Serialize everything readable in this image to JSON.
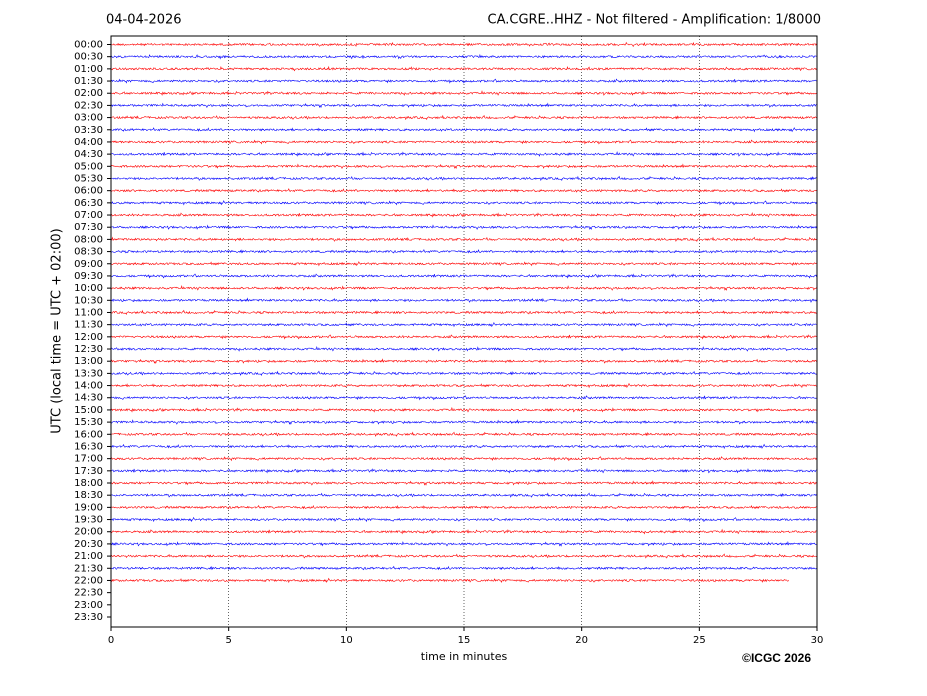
{
  "chart_data": {
    "type": "helicorder",
    "date": "04-04-2026",
    "title": "CA.CGRE..HHZ - Not filtered - Amplification: 1/8000",
    "ylabel": "UTC (local time = UTC + 02:00)",
    "xlabel": "time in minutes",
    "credit": "©ICGC 2026",
    "xlim": [
      0,
      30
    ],
    "xticks": [
      0,
      5,
      10,
      15,
      20,
      25,
      30
    ],
    "grid": true,
    "rows": [
      "00:00",
      "00:30",
      "01:00",
      "01:30",
      "02:00",
      "02:30",
      "03:00",
      "03:30",
      "04:00",
      "04:30",
      "05:00",
      "05:30",
      "06:00",
      "06:30",
      "07:00",
      "07:30",
      "08:00",
      "08:30",
      "09:00",
      "09:30",
      "10:00",
      "10:30",
      "11:00",
      "11:30",
      "12:00",
      "12:30",
      "13:00",
      "13:30",
      "14:00",
      "14:30",
      "15:00",
      "15:30",
      "16:00",
      "16:30",
      "17:00",
      "17:30",
      "18:00",
      "18:30",
      "19:00",
      "19:30",
      "20:00",
      "20:30",
      "21:00",
      "21:30",
      "22:00",
      "22:30",
      "23:00",
      "23:30"
    ],
    "colors": [
      "#ff0000",
      "#0000ff"
    ],
    "trace_ends": [
      30,
      30,
      30,
      30,
      30,
      30,
      30,
      30,
      30,
      30,
      30,
      30,
      30,
      30,
      30,
      30,
      30,
      30,
      30,
      30,
      30,
      30,
      30,
      30,
      30,
      30,
      30,
      30,
      30,
      30,
      30,
      30,
      30,
      30,
      30,
      30,
      30,
      30,
      30,
      30,
      30,
      30,
      30,
      30,
      28.8
    ]
  }
}
